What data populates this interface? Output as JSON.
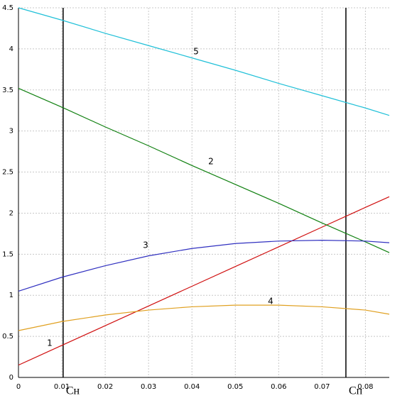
{
  "chart_data": {
    "type": "line",
    "x": [
      0,
      0.01,
      0.02,
      0.03,
      0.04,
      0.05,
      0.06,
      0.07,
      0.08,
      0.0855
    ],
    "series": [
      {
        "name": "1",
        "color": "#d01010",
        "values": [
          0.15,
          0.39,
          0.63,
          0.87,
          1.11,
          1.35,
          1.59,
          1.83,
          2.07,
          2.2
        ]
      },
      {
        "name": "2",
        "color": "#108010",
        "values": [
          3.52,
          3.29,
          3.05,
          2.82,
          2.58,
          2.35,
          2.12,
          1.88,
          1.65,
          1.52
        ]
      },
      {
        "name": "3",
        "color": "#3030c0",
        "values": [
          1.05,
          1.22,
          1.36,
          1.48,
          1.57,
          1.63,
          1.66,
          1.67,
          1.66,
          1.64
        ]
      },
      {
        "name": "4",
        "color": "#e0a020",
        "values": [
          0.57,
          0.68,
          0.76,
          0.82,
          0.86,
          0.88,
          0.88,
          0.86,
          0.82,
          0.77
        ]
      },
      {
        "name": "5",
        "color": "#20c0d8",
        "values": [
          4.5,
          4.35,
          4.19,
          4.04,
          3.89,
          3.74,
          3.58,
          3.43,
          3.28,
          3.19
        ]
      }
    ],
    "markers": [
      {
        "x": 0.0103,
        "label": "Cн"
      },
      {
        "x": 0.0755,
        "label": "Cп"
      }
    ],
    "xlim": [
      0,
      0.0855
    ],
    "ylim": [
      0,
      4.5
    ],
    "xticks": [
      0,
      0.01,
      0.02,
      0.03,
      0.04,
      0.05,
      0.06,
      0.07,
      0.08
    ],
    "yticks": [
      0,
      0.5,
      1,
      1.5,
      2,
      2.5,
      3,
      3.5,
      4,
      4.5
    ],
    "grid": true
  }
}
